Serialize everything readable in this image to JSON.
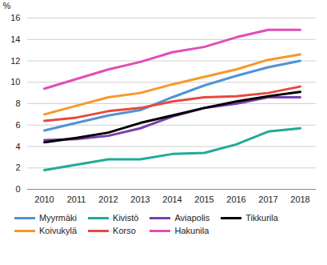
{
  "chart_data": {
    "type": "line",
    "y_label": "%",
    "categories": [
      "2010",
      "2011",
      "2012",
      "2013",
      "2014",
      "2015",
      "2016",
      "2017",
      "2018"
    ],
    "ylim": [
      0,
      16
    ],
    "yticks": [
      0,
      2,
      4,
      6,
      8,
      10,
      12,
      14,
      16
    ],
    "grid": true,
    "legend": "bottom",
    "series": [
      {
        "name": "Myyrmäki",
        "color": "#4e94d4",
        "values": [
          5.5,
          6.2,
          6.9,
          7.4,
          8.6,
          9.7,
          10.6,
          11.4,
          12.0
        ]
      },
      {
        "name": "Kivistö",
        "color": "#1faa9a",
        "values": [
          1.8,
          2.3,
          2.8,
          2.8,
          3.3,
          3.4,
          4.2,
          5.4,
          5.7
        ]
      },
      {
        "name": "Aviapolis",
        "color": "#7a3fae",
        "values": [
          4.6,
          4.7,
          5.0,
          5.7,
          6.8,
          7.6,
          8.0,
          8.6,
          8.6
        ]
      },
      {
        "name": "Tikkurila",
        "color": "#000000",
        "values": [
          4.4,
          4.8,
          5.3,
          6.2,
          6.9,
          7.6,
          8.2,
          8.7,
          9.1
        ]
      },
      {
        "name": "Koivukylä",
        "color": "#f7982a",
        "values": [
          7.0,
          7.8,
          8.6,
          9.0,
          9.8,
          10.5,
          11.2,
          12.1,
          12.6
        ]
      },
      {
        "name": "Korso",
        "color": "#e8483f",
        "values": [
          6.4,
          6.7,
          7.3,
          7.6,
          8.2,
          8.6,
          8.7,
          9.0,
          9.6
        ]
      },
      {
        "name": "Hakunila",
        "color": "#e24db5",
        "values": [
          9.4,
          10.3,
          11.2,
          11.9,
          12.8,
          13.3,
          14.2,
          14.9,
          14.9
        ]
      }
    ]
  }
}
